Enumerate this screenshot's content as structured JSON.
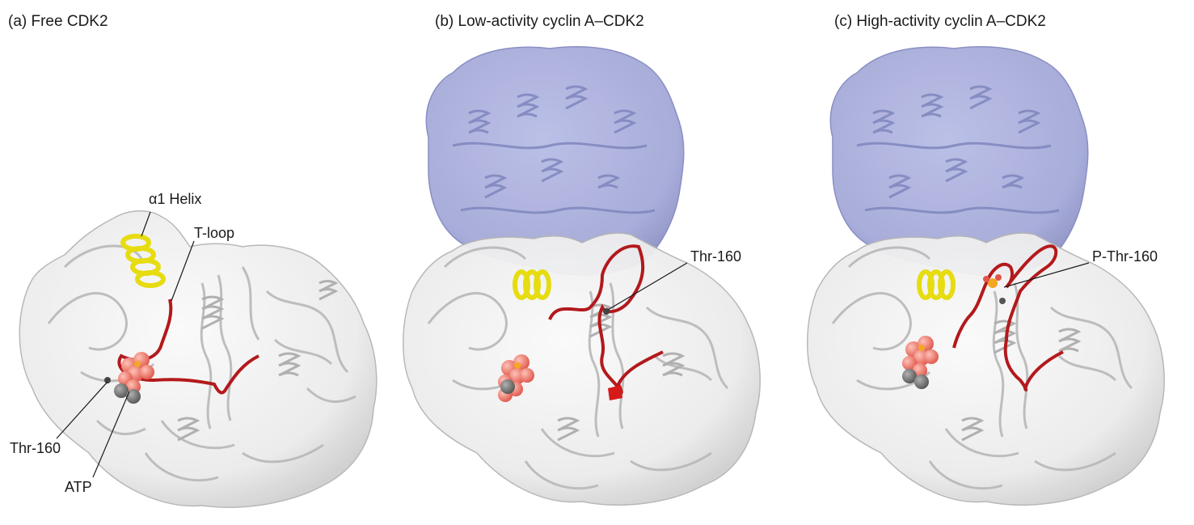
{
  "figure": {
    "panels": [
      {
        "id": "a",
        "title": "(a) Free CDK2",
        "labels": {
          "alpha_helix": "α1 Helix",
          "t_loop": "T-loop",
          "thr160": "Thr-160",
          "atp": "ATP"
        }
      },
      {
        "id": "b",
        "title": "(b) Low-activity cyclin A–CDK2",
        "labels": {
          "thr160": "Thr-160"
        }
      },
      {
        "id": "c",
        "title": "(c) High-activity cyclin A–CDK2",
        "labels": {
          "p_thr160": "P-Thr-160"
        }
      }
    ],
    "colors": {
      "cdk2_surface": "#e6e6e6",
      "cdk2_ribbon": "#b8b8b8",
      "cyclin_surface": "#a9aedb",
      "cyclin_ribbon": "#7f86bd",
      "t_loop": "#b3191c",
      "alpha_helix": "#e6dc10",
      "atp": "#f07a6e",
      "phosphate": "#f5a623",
      "carbon": "#6b6b6b"
    }
  }
}
